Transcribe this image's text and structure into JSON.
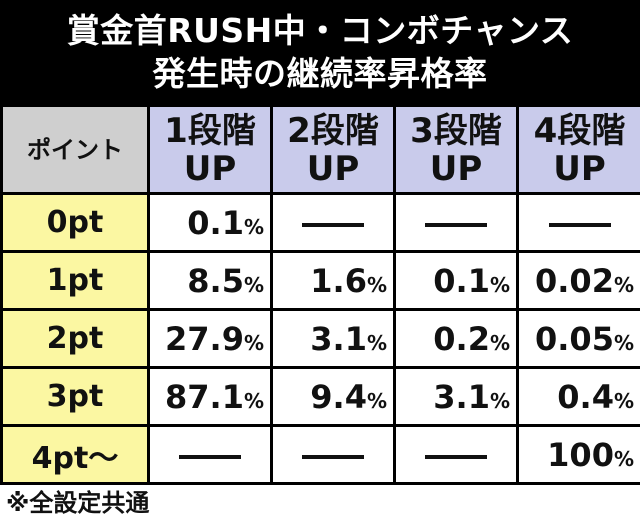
{
  "title": {
    "line1": "賞金首RUSH中・コンボチャンス",
    "line2": "発生時の継続率昇格率"
  },
  "table": {
    "corner": "ポイント",
    "columns": [
      {
        "line1": "1段階",
        "line2": "UP"
      },
      {
        "line1": "2段階",
        "line2": "UP"
      },
      {
        "line1": "3段階",
        "line2": "UP"
      },
      {
        "line1": "4段階",
        "line2": "UP"
      }
    ],
    "rows": [
      {
        "label": "0pt",
        "cells": [
          "0.1",
          "",
          "",
          ""
        ]
      },
      {
        "label": "1pt",
        "cells": [
          "8.5",
          "1.6",
          "0.1",
          "0.02"
        ]
      },
      {
        "label": "2pt",
        "cells": [
          "27.9",
          "3.1",
          "0.2",
          "0.05"
        ]
      },
      {
        "label": "3pt",
        "cells": [
          "87.1",
          "9.4",
          "3.1",
          "0.4"
        ]
      },
      {
        "label": "4pt〜",
        "cells": [
          "",
          "",
          "",
          "100"
        ]
      }
    ],
    "unit": "%"
  },
  "footnote": "※全設定共通",
  "colors": {
    "header_bg": "#000000",
    "column_header_bg": "#c9cbeb",
    "corner_bg": "#cfcfcf",
    "row_header_bg": "#fbf7a2"
  }
}
